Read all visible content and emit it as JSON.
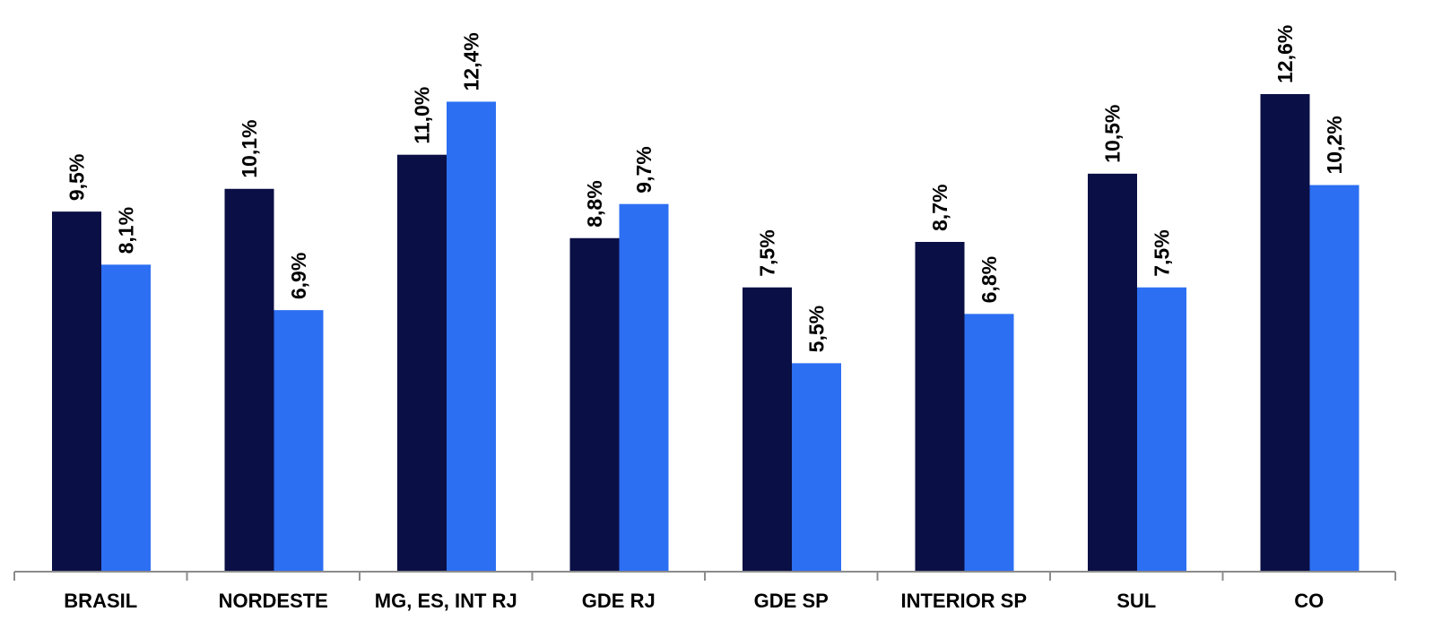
{
  "chart_data": {
    "type": "bar",
    "categories": [
      "BRASIL",
      "NORDESTE",
      "MG, ES, INT RJ",
      "GDE RJ",
      "GDE SP",
      "INTERIOR SP",
      "SUL",
      "CO"
    ],
    "series": [
      {
        "values": [
          9.5,
          10.1,
          11.0,
          8.8,
          7.5,
          8.7,
          10.5,
          12.6
        ],
        "labels": [
          "9,5%",
          "10,1%",
          "11,0%",
          "8,8%",
          "7,5%",
          "8,7%",
          "10,5%",
          "12,6%"
        ],
        "color": "#0a0f45"
      },
      {
        "values": [
          8.1,
          6.9,
          12.4,
          9.7,
          5.5,
          6.8,
          7.5,
          10.2
        ],
        "labels": [
          "8,1%",
          "6,9%",
          "12,4%",
          "9,7%",
          "5,5%",
          "6,8%",
          "7,5%",
          "10,2%"
        ],
        "color": "#2c6ff2"
      }
    ],
    "value_unit": "%",
    "data_labels": "rotated vertical above bars",
    "ylim": [
      0,
      14
    ],
    "grid": false,
    "legend": "none",
    "title": "",
    "xlabel": "",
    "ylabel": ""
  }
}
